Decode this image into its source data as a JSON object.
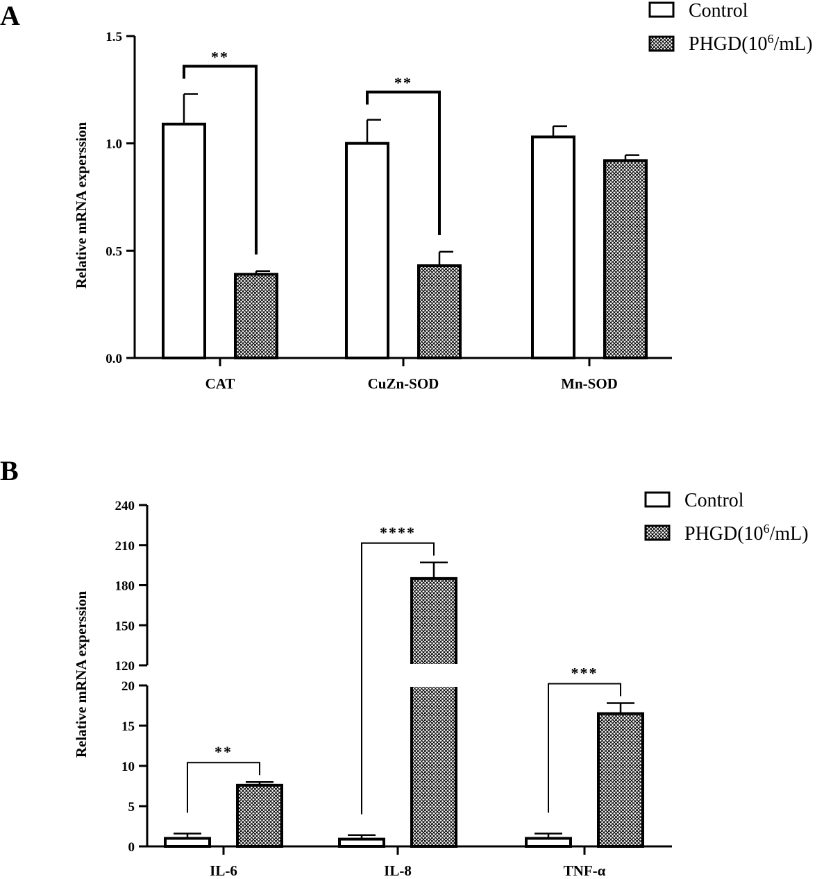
{
  "colors": {
    "axis": "#000000",
    "control_fill": "#ffffff",
    "treatment_hatch": "#000000"
  },
  "chart_data": [
    {
      "panel": "A",
      "type": "bar",
      "ylabel": "Relative mRNA experssion",
      "ylim": [
        0,
        1.5
      ],
      "yticks": [
        0.0,
        0.5,
        1.0,
        1.5
      ],
      "ytick_labels": [
        "0.0",
        "0.5",
        "1.0",
        "1.5"
      ],
      "categories": [
        "CAT",
        "CuZn-SOD",
        "Mn-SOD"
      ],
      "legend": {
        "placement": "top-right",
        "control": "Control",
        "treatment_prefix": "PHGD(10",
        "treatment_sup": "6",
        "treatment_suffix": "/mL)"
      },
      "series": [
        {
          "name": "Control",
          "values": [
            1.09,
            1.0,
            1.03
          ],
          "errors": [
            0.14,
            0.11,
            0.05
          ]
        },
        {
          "name": "PHGD(10^6/mL)",
          "values": [
            0.39,
            0.43,
            0.92
          ],
          "errors": [
            0.015,
            0.065,
            0.025
          ]
        }
      ],
      "significance": [
        {
          "category": "CAT",
          "label": "**"
        },
        {
          "category": "CuZn-SOD",
          "label": "**"
        }
      ]
    },
    {
      "panel": "B",
      "type": "bar",
      "ylabel": "Relative mRNA experssion",
      "broken_axis": true,
      "ylim_lower": [
        0,
        20
      ],
      "ylim_upper": [
        120,
        240
      ],
      "yticks_lower": [
        0,
        5,
        10,
        15,
        20
      ],
      "ytick_labels_lower": [
        "0",
        "5",
        "10",
        "15",
        "20"
      ],
      "yticks_upper": [
        120,
        150,
        180,
        210,
        240
      ],
      "ytick_labels_upper": [
        "120",
        "150",
        "180",
        "210",
        "240"
      ],
      "categories": [
        "IL-6",
        "IL-8",
        "TNF-α"
      ],
      "legend": {
        "placement": "top-right",
        "control": "Control",
        "treatment_prefix": "PHGD(10",
        "treatment_sup": "6",
        "treatment_suffix": "/mL)"
      },
      "series": [
        {
          "name": "Control",
          "values": [
            1.0,
            0.9,
            1.0
          ],
          "errors": [
            0.6,
            0.5,
            0.6
          ]
        },
        {
          "name": "PHGD(10^6/mL)",
          "values": [
            7.6,
            185,
            16.5
          ],
          "errors": [
            0.4,
            12,
            1.3
          ]
        }
      ],
      "significance": [
        {
          "category": "IL-6",
          "label": "**"
        },
        {
          "category": "IL-8",
          "label": "****"
        },
        {
          "category": "TNF-α",
          "label": "***"
        }
      ]
    }
  ]
}
